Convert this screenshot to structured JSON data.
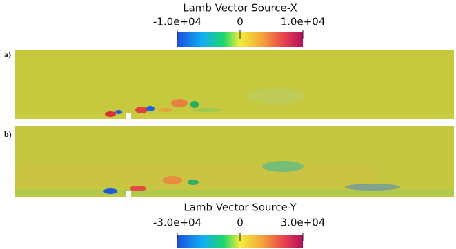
{
  "chart_data": [
    {
      "type": "contour",
      "panel_label": "a)",
      "colorbar_title": "Lamb Vector Source-X",
      "clim": [
        -10000,
        10000
      ],
      "cticks": [
        {
          "value": -10000,
          "label": "-1.0e+04"
        },
        0,
        {
          "value": 10000,
          "label": "1.0e+04"
        }
      ]
    },
    {
      "type": "contour",
      "panel_label": "b)",
      "colorbar_title": "Lamb Vector Source-Y",
      "clim": [
        -30000,
        30000
      ],
      "cticks": [
        {
          "value": -30000,
          "label": "-3.0e+04"
        },
        0,
        {
          "value": 30000,
          "label": "3.0e+04"
        }
      ]
    }
  ]
}
